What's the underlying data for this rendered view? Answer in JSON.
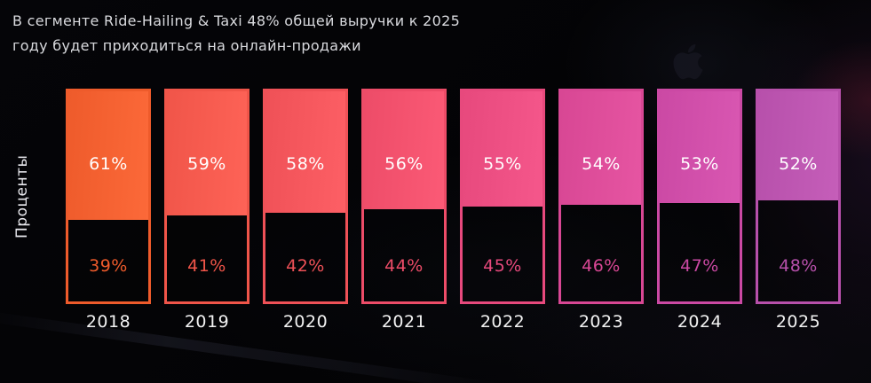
{
  "title": {
    "line1": "В сегменте Ride-Hailing & Taxi 48% общей выручки к 2025",
    "line2": "году будет приходиться на онлайн-продажи"
  },
  "chart_data": {
    "type": "bar",
    "stacked": true,
    "orientation": "vertical",
    "categories": [
      "2018",
      "2019",
      "2020",
      "2021",
      "2022",
      "2023",
      "2024",
      "2025"
    ],
    "series": [
      {
        "name": "top-segment",
        "values": [
          61,
          59,
          58,
          56,
          55,
          54,
          53,
          52
        ]
      },
      {
        "name": "bottom-segment-online-sales",
        "values": [
          39,
          41,
          42,
          44,
          45,
          46,
          47,
          48
        ]
      }
    ],
    "value_suffix": "%",
    "ylabel": "Проценты",
    "bar_colors": [
      "#EE5B2B",
      "#F05549",
      "#EF5157",
      "#ED4C68",
      "#E7497D",
      "#D84794",
      "#CB49A4",
      "#B750AB"
    ],
    "grid": false,
    "legend": "none",
    "ylim": [
      0,
      100
    ]
  },
  "style": {
    "background_color": "#040408",
    "title_color": "#D9DADE",
    "top_label_color": "#FFFFFF",
    "tick_label_color": "#F2F2F2"
  }
}
